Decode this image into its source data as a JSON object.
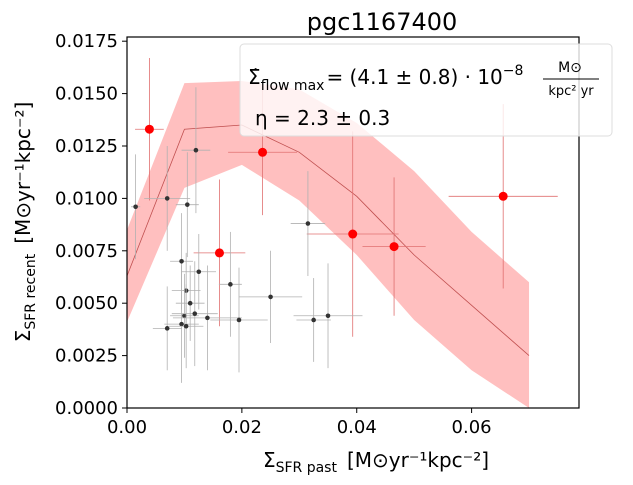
{
  "chart_data": {
    "type": "scatter",
    "title": "pgc1167400",
    "xlabel": {
      "main": "Σ",
      "sub": "SFR past",
      "units": "[M⊙yr⁻¹kpc⁻²]"
    },
    "ylabel": {
      "main": "Σ",
      "sub": "SFR recent",
      "units": "[M⊙yr⁻¹kpc⁻²]"
    },
    "xlim": [
      0.0,
      0.0787
    ],
    "ylim": [
      0.0,
      0.0177
    ],
    "xticks": [
      0.0,
      0.02,
      0.04,
      0.06
    ],
    "xtick_labels": [
      "0.00",
      "0.02",
      "0.04",
      "0.06"
    ],
    "yticks": [
      0.0,
      0.0025,
      0.005,
      0.0075,
      0.01,
      0.0125,
      0.015,
      0.0175
    ],
    "ytick_labels": [
      "0.0000",
      "0.0025",
      "0.0050",
      "0.0075",
      "0.0100",
      "0.0125",
      "0.0150",
      "0.0175"
    ],
    "grid": false,
    "annotations": {
      "flow_prefix": "Σ̇",
      "flow_sub": "flow max",
      "flow_value": "= (4.1 ± 0.8) · 10",
      "flow_exp": "−8",
      "flow_unit_num": "M⊙",
      "flow_unit_den": "kpc² yr",
      "eta": "η = 2.3 ± 0.3"
    },
    "colors": {
      "red": "#ff0000",
      "band": "#ffbfbf",
      "line": "#c05050",
      "black": "#333333",
      "err_grey": "#b0b0b0",
      "err_red": "#e07070"
    },
    "model": {
      "x": [
        0.0,
        0.01,
        0.02,
        0.03,
        0.04,
        0.05,
        0.06,
        0.07
      ],
      "y": [
        0.0063,
        0.0133,
        0.0135,
        0.0122,
        0.0101,
        0.0073,
        0.0049,
        0.0025
      ],
      "y_low": [
        0.0041,
        0.0105,
        0.0116,
        0.0099,
        0.0073,
        0.0042,
        0.0018,
        0.0
      ],
      "y_high": [
        0.0085,
        0.0155,
        0.0156,
        0.0152,
        0.0136,
        0.0113,
        0.0084,
        0.006
      ]
    },
    "series": [
      {
        "name": "red points",
        "color": "#ff0000",
        "points": [
          {
            "x": 0.0039,
            "y": 0.0133,
            "xerr": 0.0025,
            "yerr": 0.0034
          },
          {
            "x": 0.0161,
            "y": 0.0074,
            "xerr": 0.0045,
            "yerr": 0.0035
          },
          {
            "x": 0.0236,
            "y": 0.0122,
            "xerr": 0.006,
            "yerr": 0.003
          },
          {
            "x": 0.0393,
            "y": 0.0083,
            "xerr": 0.008,
            "yerr": 0.0049
          },
          {
            "x": 0.0465,
            "y": 0.0077,
            "xerr": 0.0055,
            "yerr": 0.0033
          },
          {
            "x": 0.0655,
            "y": 0.0101,
            "xerr": 0.0095,
            "yerr": 0.0044
          }
        ]
      },
      {
        "name": "black points",
        "color": "#333333",
        "points": [
          {
            "x": 0.0015,
            "y": 0.0096,
            "xerr": 0.0008,
            "yerr": 0.0025
          },
          {
            "x": 0.007,
            "y": 0.01,
            "xerr": 0.004,
            "yerr": 0.0025
          },
          {
            "x": 0.007,
            "y": 0.0038,
            "xerr": 0.0025,
            "yerr": 0.002
          },
          {
            "x": 0.0095,
            "y": 0.007,
            "xerr": 0.002,
            "yerr": 0.0023
          },
          {
            "x": 0.0105,
            "y": 0.0097,
            "xerr": 0.002,
            "yerr": 0.0025
          },
          {
            "x": 0.012,
            "y": 0.0123,
            "xerr": 0.0025,
            "yerr": 0.003
          },
          {
            "x": 0.0125,
            "y": 0.0065,
            "xerr": 0.003,
            "yerr": 0.0018
          },
          {
            "x": 0.0103,
            "y": 0.0056,
            "xerr": 0.0025,
            "yerr": 0.0018
          },
          {
            "x": 0.011,
            "y": 0.005,
            "xerr": 0.0025,
            "yerr": 0.0018
          },
          {
            "x": 0.01,
            "y": 0.0044,
            "xerr": 0.0025,
            "yerr": 0.002
          },
          {
            "x": 0.0095,
            "y": 0.004,
            "xerr": 0.003,
            "yerr": 0.0028
          },
          {
            "x": 0.0103,
            "y": 0.0039,
            "xerr": 0.003,
            "yerr": 0.002
          },
          {
            "x": 0.0118,
            "y": 0.0045,
            "xerr": 0.004,
            "yerr": 0.0025
          },
          {
            "x": 0.014,
            "y": 0.0043,
            "xerr": 0.006,
            "yerr": 0.0025
          },
          {
            "x": 0.018,
            "y": 0.0059,
            "xerr": 0.002,
            "yerr": 0.0025
          },
          {
            "x": 0.0195,
            "y": 0.0042,
            "xerr": 0.005,
            "yerr": 0.0025
          },
          {
            "x": 0.025,
            "y": 0.0053,
            "xerr": 0.0055,
            "yerr": 0.0022
          },
          {
            "x": 0.0315,
            "y": 0.0088,
            "xerr": 0.003,
            "yerr": 0.0025
          },
          {
            "x": 0.0325,
            "y": 0.0042,
            "xerr": 0.003,
            "yerr": 0.002
          },
          {
            "x": 0.035,
            "y": 0.0044,
            "xerr": 0.006,
            "yerr": 0.0025
          }
        ]
      }
    ]
  }
}
